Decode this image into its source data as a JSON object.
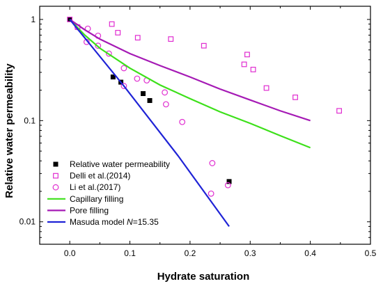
{
  "chart_data": {
    "type": "scatter",
    "xlabel": "Hydrate saturation",
    "ylabel": "Relative water permeability",
    "xlim": [
      -0.05,
      0.5
    ],
    "ylim": [
      0.006,
      1.35
    ],
    "y_scale": "log",
    "grid": false,
    "legend_position": "lower-left",
    "x_ticks": [
      {
        "value": 0.0,
        "label": "0.0"
      },
      {
        "value": 0.1,
        "label": "0.1"
      },
      {
        "value": 0.2,
        "label": "0.2"
      },
      {
        "value": 0.3,
        "label": "0.3"
      },
      {
        "value": 0.4,
        "label": "0.4"
      },
      {
        "value": 0.5,
        "label": "0.5"
      }
    ],
    "y_ticks": [
      {
        "value": 0.01,
        "label": "0.01"
      },
      {
        "value": 0.1,
        "label": "0.1"
      },
      {
        "value": 1,
        "label": "1"
      }
    ],
    "series": [
      {
        "name": "Relative water permeability",
        "kind": "scatter",
        "marker": "filled-square",
        "color": "#000000",
        "points": [
          [
            0.0,
            1.0
          ],
          [
            0.072,
            0.27
          ],
          [
            0.085,
            0.24
          ],
          [
            0.122,
            0.185
          ],
          [
            0.133,
            0.158
          ],
          [
            0.265,
            0.025
          ]
        ]
      },
      {
        "name": "Delli et al.(2014)",
        "kind": "scatter",
        "marker": "open-square",
        "color": "#e02cd0",
        "points": [
          [
            0.0,
            1.0
          ],
          [
            0.013,
            0.84
          ],
          [
            0.07,
            0.9
          ],
          [
            0.08,
            0.74
          ],
          [
            0.113,
            0.66
          ],
          [
            0.168,
            0.64
          ],
          [
            0.223,
            0.55
          ],
          [
            0.29,
            0.36
          ],
          [
            0.295,
            0.45
          ],
          [
            0.305,
            0.32
          ],
          [
            0.327,
            0.21
          ],
          [
            0.375,
            0.17
          ],
          [
            0.448,
            0.125
          ]
        ]
      },
      {
        "name": "Li et al.(2017)",
        "kind": "scatter",
        "marker": "open-circle",
        "color": "#e02cd0",
        "points": [
          [
            0.013,
            0.84
          ],
          [
            0.03,
            0.81
          ],
          [
            0.047,
            0.69
          ],
          [
            0.028,
            0.6
          ],
          [
            0.047,
            0.55
          ],
          [
            0.065,
            0.46
          ],
          [
            0.09,
            0.33
          ],
          [
            0.112,
            0.26
          ],
          [
            0.128,
            0.25
          ],
          [
            0.09,
            0.22
          ],
          [
            0.158,
            0.19
          ],
          [
            0.16,
            0.145
          ],
          [
            0.187,
            0.097
          ],
          [
            0.237,
            0.038
          ],
          [
            0.235,
            0.019
          ],
          [
            0.263,
            0.023
          ]
        ]
      },
      {
        "name": "Capillary filling",
        "kind": "line",
        "color": "#3de01a",
        "points": [
          [
            0.0,
            1.0
          ],
          [
            0.025,
            0.7
          ],
          [
            0.05,
            0.52
          ],
          [
            0.1,
            0.33
          ],
          [
            0.15,
            0.225
          ],
          [
            0.2,
            0.165
          ],
          [
            0.25,
            0.122
          ],
          [
            0.3,
            0.094
          ],
          [
            0.35,
            0.071
          ],
          [
            0.4,
            0.054
          ]
        ]
      },
      {
        "name": "Pore filling",
        "kind": "line",
        "color": "#a51ab5",
        "points": [
          [
            0.0,
            1.0
          ],
          [
            0.025,
            0.79
          ],
          [
            0.05,
            0.64
          ],
          [
            0.1,
            0.46
          ],
          [
            0.15,
            0.35
          ],
          [
            0.2,
            0.27
          ],
          [
            0.25,
            0.205
          ],
          [
            0.3,
            0.16
          ],
          [
            0.35,
            0.125
          ],
          [
            0.4,
            0.1
          ]
        ]
      },
      {
        "name": "Masuda model ",
        "name_italic": "N",
        "name_suffix": "=15.35",
        "kind": "line",
        "color": "#1f23d6",
        "points": [
          [
            0.0,
            1.0
          ],
          [
            0.09,
            0.22
          ],
          [
            0.18,
            0.045
          ],
          [
            0.265,
            0.009
          ]
        ]
      }
    ]
  }
}
